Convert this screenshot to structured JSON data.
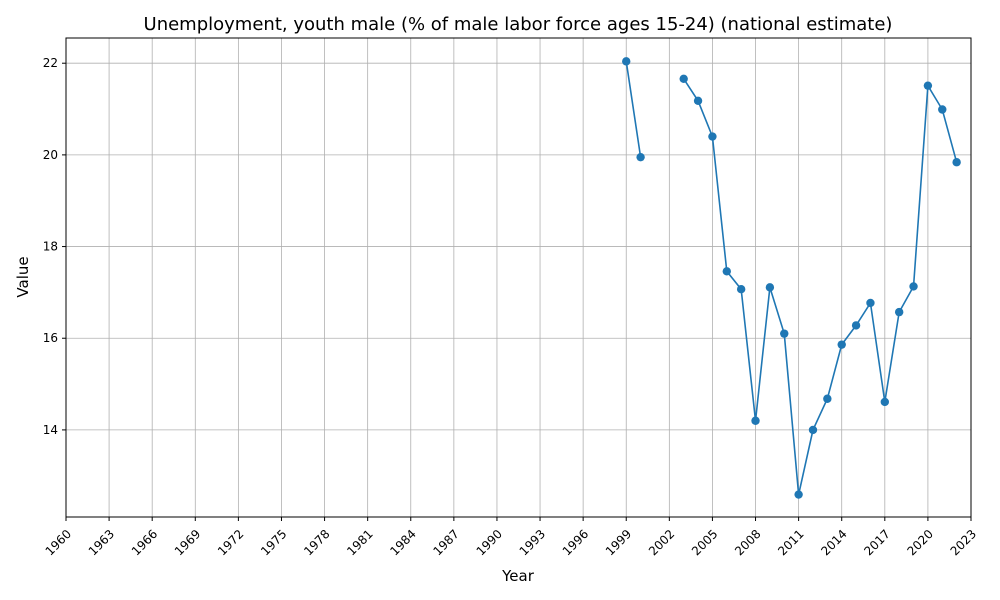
{
  "chart_data": {
    "type": "line",
    "title": "Unemployment, youth male (% of male labor force ages 15-24) (national estimate)",
    "xlabel": "Year",
    "ylabel": "Value",
    "xlim": [
      1960,
      2023
    ],
    "ylim": [
      12.1,
      22.55
    ],
    "x_ticks": [
      1960,
      1963,
      1966,
      1969,
      1972,
      1975,
      1978,
      1981,
      1984,
      1987,
      1990,
      1993,
      1996,
      1999,
      2002,
      2005,
      2008,
      2011,
      2014,
      2017,
      2020,
      2023
    ],
    "y_ticks": [
      14,
      16,
      18,
      20,
      22
    ],
    "grid": true,
    "color": "#1f77b4",
    "marker": "circle",
    "points": [
      {
        "x": 1999,
        "y": 22.04
      },
      {
        "x": 2000,
        "y": 19.95
      },
      {
        "x": 2001,
        "y": null
      },
      {
        "x": 2002,
        "y": null
      },
      {
        "x": 2003,
        "y": 21.66
      },
      {
        "x": 2004,
        "y": 21.18
      },
      {
        "x": 2005,
        "y": 20.4
      },
      {
        "x": 2006,
        "y": 17.46
      },
      {
        "x": 2007,
        "y": 17.07
      },
      {
        "x": 2008,
        "y": 14.2
      },
      {
        "x": 2009,
        "y": 17.11
      },
      {
        "x": 2010,
        "y": 16.1
      },
      {
        "x": 2011,
        "y": 12.59
      },
      {
        "x": 2012,
        "y": 14.0
      },
      {
        "x": 2013,
        "y": 14.68
      },
      {
        "x": 2014,
        "y": 15.86
      },
      {
        "x": 2015,
        "y": 16.28
      },
      {
        "x": 2016,
        "y": 16.77
      },
      {
        "x": 2017,
        "y": 14.61
      },
      {
        "x": 2018,
        "y": 16.57
      },
      {
        "x": 2019,
        "y": 17.13
      },
      {
        "x": 2020,
        "y": 21.51
      },
      {
        "x": 2021,
        "y": 20.99
      },
      {
        "x": 2022,
        "y": 19.84
      }
    ]
  }
}
